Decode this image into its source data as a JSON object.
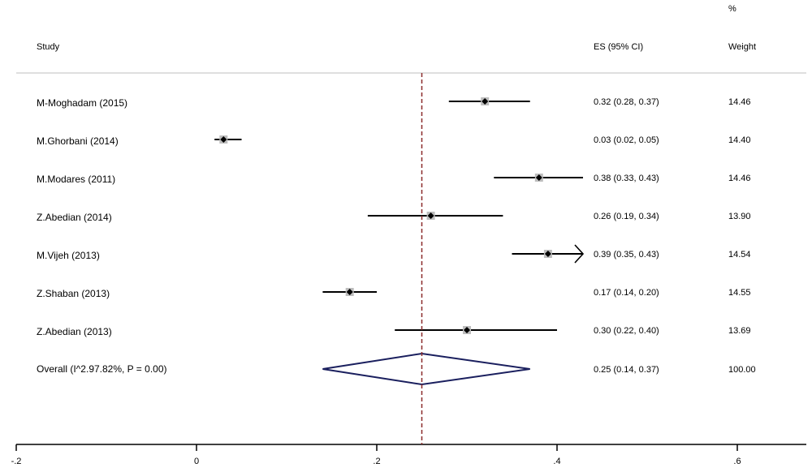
{
  "header": {
    "study": "Study",
    "es": "ES (95% CI)",
    "percent": "%",
    "weight": "Weight"
  },
  "chart_data": {
    "type": "forest",
    "xlim": [
      -0.2,
      0.6
    ],
    "xticks": [
      "-.2",
      "0",
      ".2",
      ".4",
      ".6"
    ],
    "xtick_values": [
      -0.2,
      0,
      0.2,
      0.4,
      0.6
    ],
    "reference_line": 0.25,
    "studies": [
      {
        "label": "M-Moghadam (2015)",
        "es": 0.32,
        "lo": 0.28,
        "hi": 0.37,
        "es_text": "0.32 (0.28, 0.37)",
        "weight": "14.46"
      },
      {
        "label": "M.Ghorbani (2014)",
        "es": 0.03,
        "lo": 0.02,
        "hi": 0.05,
        "es_text": "0.03 (0.02, 0.05)",
        "weight": "14.40"
      },
      {
        "label": "M.Modares (2011)",
        "es": 0.38,
        "lo": 0.33,
        "hi": 0.43,
        "es_text": "0.38 (0.33, 0.43)",
        "weight": "14.46"
      },
      {
        "label": "Z.Abedian (2014)",
        "es": 0.26,
        "lo": 0.19,
        "hi": 0.34,
        "es_text": "0.26 (0.19, 0.34)",
        "weight": "13.90"
      },
      {
        "label": "M.Vijeh (2013)",
        "es": 0.39,
        "lo": 0.35,
        "hi": 0.43,
        "es_text": "0.39 (0.35, 0.43)",
        "weight": "14.54",
        "arrow": true
      },
      {
        "label": "Z.Shaban (2013)",
        "es": 0.17,
        "lo": 0.14,
        "hi": 0.2,
        "es_text": "0.17 (0.14, 0.20)",
        "weight": "14.55"
      },
      {
        "label": "Z.Abedian (2013)",
        "es": 0.3,
        "lo": 0.22,
        "hi": 0.4,
        "es_text": "0.30 (0.22, 0.40)",
        "weight": "13.69"
      }
    ],
    "overall": {
      "label": "Overall (I^2.97.82%,  P = 0.00)",
      "es": 0.25,
      "lo": 0.14,
      "hi": 0.37,
      "es_text": "0.25 (0.14, 0.37)",
      "weight": "100.00"
    },
    "colors": {
      "marker": "#000000",
      "box": "#bdbdbd",
      "diamond": "#1a1f5e",
      "refline": "#8b2a2a",
      "separator": "#bfbfbf"
    }
  }
}
